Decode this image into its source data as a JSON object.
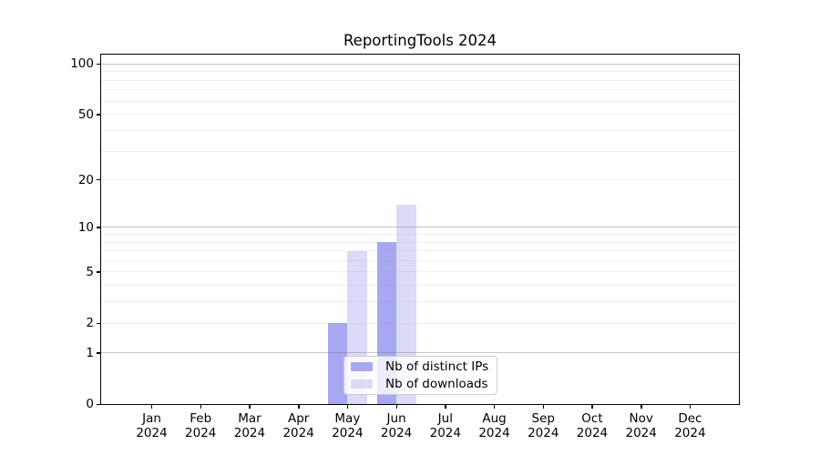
{
  "chart_data": {
    "type": "bar",
    "title": "ReportingTools 2024",
    "xlabel": "",
    "ylabel": "",
    "yscale": "log1p",
    "yticks": [
      0,
      1,
      2,
      5,
      10,
      20,
      50,
      100
    ],
    "major_grid_values": [
      1,
      10,
      100
    ],
    "minor_grid_values": [
      2,
      3,
      4,
      5,
      6,
      7,
      8,
      9,
      20,
      30,
      40,
      50,
      60,
      70,
      80,
      90
    ],
    "ylim": [
      0,
      115
    ],
    "grid": "on",
    "legend_position": "bottom-center",
    "months": [
      "Jan",
      "Feb",
      "Mar",
      "Apr",
      "May",
      "Jun",
      "Jul",
      "Aug",
      "Sep",
      "Oct",
      "Nov",
      "Dec"
    ],
    "year_line": "2024",
    "categories": [
      "Jan 2024",
      "Feb 2024",
      "Mar 2024",
      "Apr 2024",
      "May 2024",
      "Jun 2024",
      "Jul 2024",
      "Aug 2024",
      "Sep 2024",
      "Oct 2024",
      "Nov 2024",
      "Dec 2024"
    ],
    "series": [
      {
        "name": "Nb of distinct IPs",
        "color": "#a7a7f2",
        "values": [
          0,
          0,
          0,
          0,
          2,
          8,
          0,
          0,
          0,
          0,
          0,
          0
        ]
      },
      {
        "name": "Nb of downloads",
        "color": "#dbdbf7",
        "values": [
          0,
          0,
          0,
          0,
          7,
          14,
          0,
          0,
          0,
          0,
          0,
          0
        ]
      }
    ],
    "colors": {
      "axis": "#000000",
      "major_grid": "#c4c4c4",
      "minor_grid": "#ececec",
      "background": "#ffffff"
    }
  }
}
